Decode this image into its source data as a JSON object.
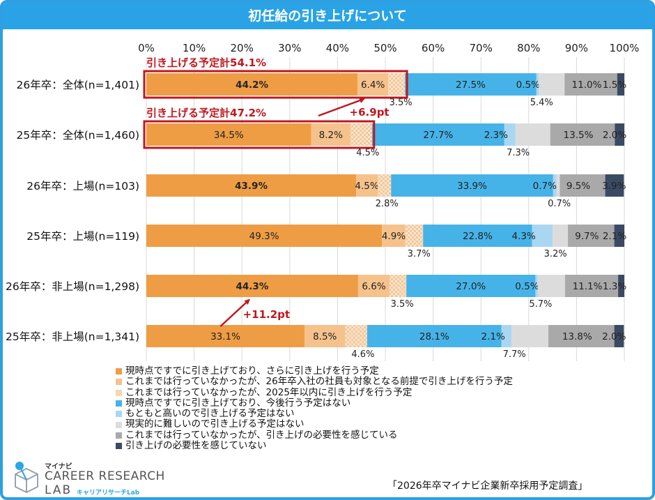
{
  "title": "初任給の引き上げについて",
  "source": "「2026年卒マイナビ企業新卒採用予定調査」",
  "logo": {
    "line1": "マイナビ",
    "line2": "CAREER RESEARCH",
    "line3": "LAB",
    "line4": "キャリアリサーチLab"
  },
  "chart_data": {
    "type": "bar",
    "orientation": "horizontal",
    "stacked": true,
    "x_ticks": [
      "0%",
      "10%",
      "20%",
      "30%",
      "40%",
      "50%",
      "60%",
      "70%",
      "80%",
      "90%",
      "100%"
    ],
    "xlim": [
      0,
      100
    ],
    "categories": [
      "26年卒：全体(n=1,401)",
      "25年卒：全体(n=1,460)",
      "26年卒：上場(n=103)",
      "25年卒：上場(n=119)",
      "26年卒：非上場(n=1,298)",
      "25年卒：非上場(n=1,341)"
    ],
    "series": [
      {
        "name": "現時点ですでに引き上げており、さらに引き上げを行う予定",
        "color": "#ee9d45",
        "values": [
          44.2,
          34.5,
          43.9,
          49.3,
          44.3,
          33.1
        ],
        "labels": [
          "44.2%",
          "34.5%",
          "43.9%",
          "49.3%",
          "44.3%",
          "33.1%"
        ],
        "bold": [
          true,
          false,
          true,
          false,
          true,
          false
        ]
      },
      {
        "name": "これまでは行っていなかったが、26年卒入社の社員も対象となる前提で引き上げを行う予定",
        "color": "#f5c28c",
        "values": [
          6.4,
          8.2,
          4.5,
          4.9,
          6.6,
          8.5
        ],
        "labels": [
          "6.4%",
          "8.2%",
          "4.5%",
          "4.9%",
          "6.6%",
          "8.5%"
        ]
      },
      {
        "name": "これまでは行っていなかったが、2025年以内に引き上げを行う予定",
        "color": "#f8d7b4",
        "values": [
          3.5,
          4.5,
          2.8,
          3.7,
          3.5,
          4.6
        ],
        "labels": [
          "3.5%",
          "4.5%",
          "2.8%",
          "3.7%",
          "3.5%",
          "4.6%"
        ]
      },
      {
        "name": "現時点ですでに引き上げており、今後行う予定はない",
        "color": "#46b3e8",
        "values": [
          27.5,
          27.7,
          33.9,
          22.8,
          27.0,
          28.1
        ],
        "labels": [
          "27.5%",
          "27.7%",
          "33.9%",
          "22.8%",
          "27.0%",
          "28.1%"
        ]
      },
      {
        "name": "もともと高いので引き上げる予定はない",
        "color": "#a9d7f2",
        "values": [
          0.5,
          2.3,
          0.7,
          4.3,
          0.5,
          2.1
        ],
        "labels": [
          "0.5%",
          "2.3%",
          "0.7%",
          "4.3%",
          "0.5%",
          "2.1%"
        ]
      },
      {
        "name": "現実的に難しいので引き上げる予定はない",
        "color": "#dcdcdc",
        "values": [
          5.4,
          7.3,
          0.7,
          3.2,
          5.7,
          7.7
        ],
        "labels": [
          "5.4%",
          "7.3%",
          "0.7%",
          "3.2%",
          "5.7%",
          "7.7%"
        ]
      },
      {
        "name": "これまでは行っていなかったが、引き上げの必要性を感じている",
        "color": "#a9a9a9",
        "values": [
          11.0,
          13.5,
          9.5,
          9.7,
          11.1,
          13.8
        ],
        "labels": [
          "11.0%",
          "13.5%",
          "9.5%",
          "9.7%",
          "11.1%",
          "13.8%"
        ]
      },
      {
        "name": "引き上げの必要性を感じていない",
        "color": "#3b4a63",
        "values": [
          1.5,
          2.0,
          3.9,
          2.1,
          1.3,
          2.0
        ],
        "labels": [
          "1.5%",
          "2.0%",
          "3.9%",
          "2.1%",
          "1.3%",
          "2.0%"
        ]
      }
    ],
    "annotations": [
      {
        "text": "引き上げる予定計54.1%",
        "row": 0,
        "total": 54.1,
        "color": "#c0171d"
      },
      {
        "text": "引き上げる予定計47.2%",
        "row": 1,
        "total": 47.2,
        "color": "#c0171d"
      },
      {
        "text": "+6.9pt",
        "color": "#c0171d"
      },
      {
        "text": "+11.2pt",
        "color": "#c0171d"
      }
    ]
  }
}
